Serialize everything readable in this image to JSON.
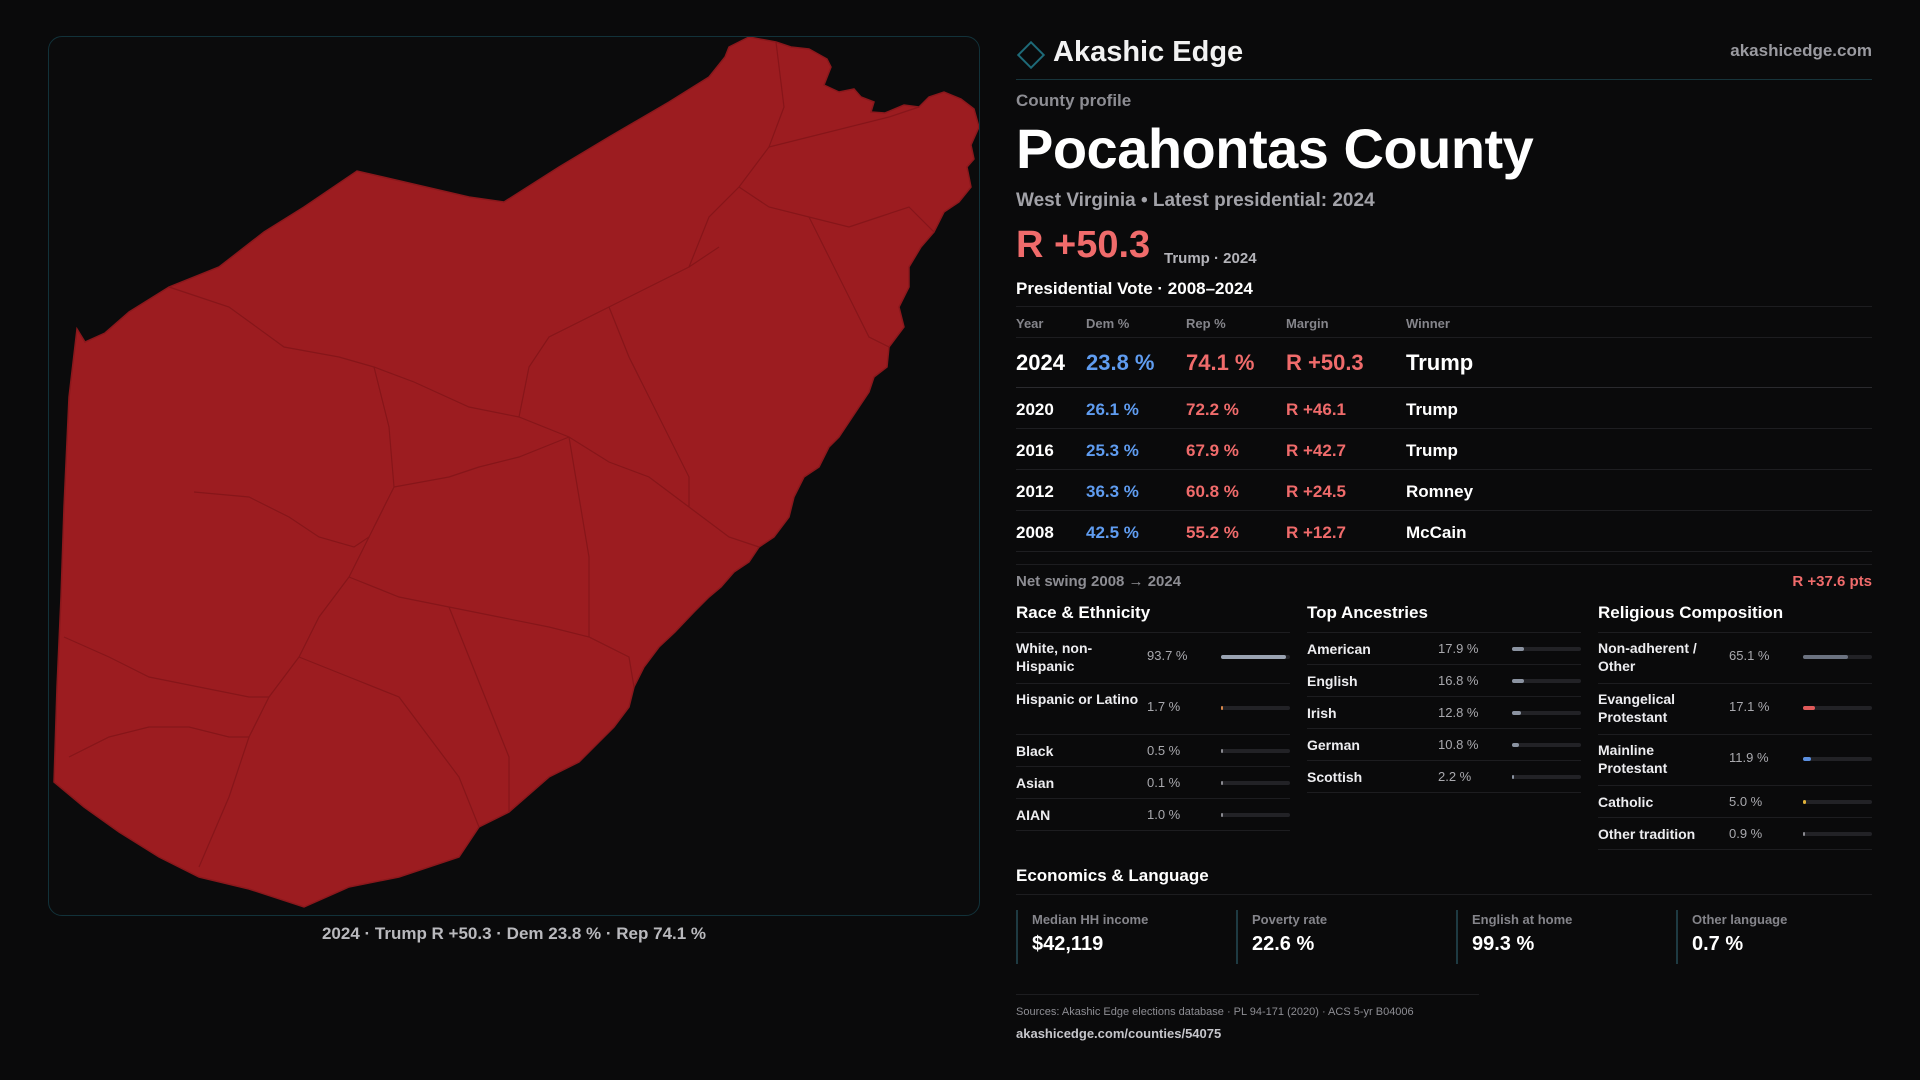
{
  "brand": {
    "name": "Akashic Edge",
    "site": "akashicedge.com",
    "accent_color": "#1e6a78"
  },
  "profile": {
    "eyebrow": "County profile",
    "county": "Pocahontas County",
    "subtitle": "West Virginia • Latest presidential: 2024",
    "margin": "R +50.3",
    "margin_note": "Trump · 2024"
  },
  "map": {
    "caption": "2024 · Trump R +50.3 · Dem 23.8 % · Rep 74.1 %",
    "fill_color": "#9c1c20",
    "border_color": "#7a1518"
  },
  "vote_table": {
    "title": "Presidential Vote · 2008–2024",
    "headers": {
      "year": "Year",
      "dem": "Dem %",
      "rep": "Rep %",
      "margin": "Margin",
      "winner": "Winner"
    },
    "rows": [
      {
        "year": "2024",
        "dem": "23.8 %",
        "rep": "74.1 %",
        "margin": "R +50.3",
        "winner": "Trump"
      },
      {
        "year": "2020",
        "dem": "26.1 %",
        "rep": "72.2 %",
        "margin": "R +46.1",
        "winner": "Trump"
      },
      {
        "year": "2016",
        "dem": "25.3 %",
        "rep": "67.9 %",
        "margin": "R +42.7",
        "winner": "Trump"
      },
      {
        "year": "2012",
        "dem": "36.3 %",
        "rep": "60.8 %",
        "margin": "R +24.5",
        "winner": "Romney"
      },
      {
        "year": "2008",
        "dem": "42.5 %",
        "rep": "55.2 %",
        "margin": "R +12.7",
        "winner": "McCain"
      }
    ],
    "swing_label": "Net swing 2008 → 2024",
    "swing_value": "R +37.6 pts"
  },
  "race": {
    "title": "Race & Ethnicity",
    "rows": [
      {
        "label": "White, non-Hispanic",
        "value": "93.7 %",
        "fraction": 0.937,
        "color": "#9aa3b2"
      },
      {
        "label": "Hispanic or Latino",
        "value": "1.7 %",
        "fraction": 0.017,
        "color": "#d9874a"
      },
      {
        "label": "Black",
        "value": "0.5 %",
        "fraction": 0.005,
        "color": "#8a8a90"
      },
      {
        "label": "Asian",
        "value": "0.1 %",
        "fraction": 0.001,
        "color": "#8a8a90"
      },
      {
        "label": "AIAN",
        "value": "1.0 %",
        "fraction": 0.01,
        "color": "#8a8a90"
      }
    ]
  },
  "ancestry": {
    "title": "Top Ancestries",
    "rows": [
      {
        "label": "American",
        "value": "17.9 %",
        "fraction": 0.179,
        "color": "#8b93a1"
      },
      {
        "label": "English",
        "value": "16.8 %",
        "fraction": 0.168,
        "color": "#8b93a1"
      },
      {
        "label": "Irish",
        "value": "12.8 %",
        "fraction": 0.128,
        "color": "#8b93a1"
      },
      {
        "label": "German",
        "value": "10.8 %",
        "fraction": 0.108,
        "color": "#8b93a1"
      },
      {
        "label": "Scottish",
        "value": "2.2 %",
        "fraction": 0.022,
        "color": "#8b93a1"
      }
    ]
  },
  "religion": {
    "title": "Religious Composition",
    "rows": [
      {
        "label": "Non-adherent / Other",
        "value": "65.1 %",
        "fraction": 0.651,
        "color": "#6b7280"
      },
      {
        "label": "Evangelical Protestant",
        "value": "17.1 %",
        "fraction": 0.171,
        "color": "#e05a5a"
      },
      {
        "label": "Mainline Protestant",
        "value": "11.9 %",
        "fraction": 0.119,
        "color": "#5b8fe0"
      },
      {
        "label": "Catholic",
        "value": "5.0 %",
        "fraction": 0.05,
        "color": "#e0b23a"
      },
      {
        "label": "Other tradition",
        "value": "0.9 %",
        "fraction": 0.009,
        "color": "#8a8a90"
      }
    ]
  },
  "economics": {
    "title": "Economics & Language",
    "items": [
      {
        "label": "Median HH income",
        "value": "$42,119"
      },
      {
        "label": "Poverty rate",
        "value": "22.6 %"
      },
      {
        "label": "English at home",
        "value": "99.3 %"
      },
      {
        "label": "Other language",
        "value": "0.7 %"
      }
    ]
  },
  "footer": {
    "sources": "Sources: Akashic Edge elections database · PL 94-171 (2020) · ACS 5-yr B04006",
    "url": "akashicedge.com/counties/54075"
  }
}
